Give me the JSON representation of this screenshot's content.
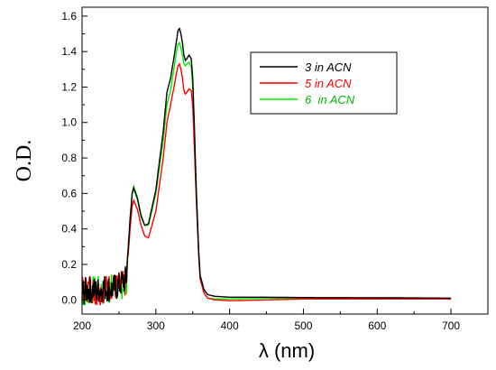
{
  "chart_data": {
    "type": "line",
    "title": "",
    "xlabel": "λ (nm)",
    "ylabel": "O.D.",
    "xlim": [
      200,
      750
    ],
    "ylim": [
      -0.08,
      1.65
    ],
    "xticks": [
      200,
      300,
      400,
      500,
      600,
      700
    ],
    "yticks": [
      0.0,
      0.2,
      0.4,
      0.6,
      0.8,
      1.0,
      1.2,
      1.4,
      1.6
    ],
    "xtick_labels": [
      "200",
      "300",
      "400",
      "500",
      "600",
      "700"
    ],
    "ytick_labels": [
      "0.0",
      "0.2",
      "0.4",
      "0.6",
      "0.8",
      "1.0",
      "1.2",
      "1.4",
      "1.6"
    ],
    "grid": false,
    "legend_position": "top-right",
    "series": [
      {
        "name": "3 in ACN",
        "color": "#000000",
        "x": [
          200,
          210,
          220,
          230,
          240,
          250,
          260,
          265,
          268,
          270,
          275,
          280,
          285,
          290,
          300,
          310,
          315,
          320,
          325,
          328,
          330,
          332,
          334,
          336,
          338,
          340,
          342,
          345,
          348,
          350,
          352,
          355,
          358,
          360,
          365,
          370,
          380,
          400,
          450,
          500,
          600,
          700
        ],
        "y": [
          0.04,
          0.06,
          0.05,
          0.07,
          0.06,
          0.08,
          0.12,
          0.45,
          0.6,
          0.63,
          0.57,
          0.47,
          0.42,
          0.43,
          0.62,
          0.95,
          1.17,
          1.25,
          1.38,
          1.46,
          1.52,
          1.53,
          1.5,
          1.45,
          1.38,
          1.35,
          1.36,
          1.38,
          1.36,
          1.25,
          1.0,
          0.6,
          0.28,
          0.14,
          0.06,
          0.03,
          0.02,
          0.015,
          0.015,
          0.013,
          0.012,
          0.01
        ]
      },
      {
        "name": "5 in ACN",
        "color": "#ff0000",
        "x": [
          200,
          210,
          220,
          230,
          240,
          250,
          260,
          265,
          268,
          270,
          275,
          280,
          285,
          290,
          300,
          310,
          315,
          320,
          325,
          328,
          330,
          332,
          334,
          336,
          338,
          340,
          342,
          345,
          348,
          350,
          352,
          355,
          358,
          360,
          365,
          370,
          380,
          400,
          450,
          500,
          600,
          700
        ],
        "y": [
          0.05,
          0.07,
          0.04,
          0.06,
          0.08,
          0.07,
          0.1,
          0.4,
          0.53,
          0.56,
          0.51,
          0.42,
          0.36,
          0.35,
          0.5,
          0.8,
          1.0,
          1.1,
          1.21,
          1.28,
          1.32,
          1.33,
          1.3,
          1.25,
          1.18,
          1.16,
          1.17,
          1.19,
          1.18,
          1.09,
          0.88,
          0.55,
          0.25,
          0.12,
          0.04,
          0.01,
          0.0,
          -0.005,
          0.0,
          0.005,
          0.005,
          0.005
        ]
      },
      {
        "name": "6  in ACN",
        "color": "#00ee00",
        "x": [
          200,
          210,
          220,
          230,
          240,
          250,
          260,
          265,
          268,
          270,
          275,
          280,
          285,
          290,
          300,
          310,
          315,
          320,
          325,
          328,
          330,
          332,
          334,
          336,
          338,
          340,
          342,
          345,
          348,
          350,
          352,
          355,
          358,
          360,
          365,
          370,
          380,
          400,
          450,
          500,
          600,
          700
        ],
        "y": [
          0.03,
          0.05,
          0.06,
          0.04,
          0.07,
          0.06,
          0.11,
          0.46,
          0.61,
          0.64,
          0.58,
          0.48,
          0.42,
          0.42,
          0.6,
          0.9,
          1.1,
          1.18,
          1.32,
          1.4,
          1.44,
          1.45,
          1.42,
          1.38,
          1.33,
          1.32,
          1.33,
          1.34,
          1.31,
          1.2,
          0.96,
          0.58,
          0.27,
          0.12,
          0.04,
          0.01,
          0.005,
          0.005,
          0.01,
          0.01,
          0.01,
          0.008
        ]
      }
    ]
  }
}
